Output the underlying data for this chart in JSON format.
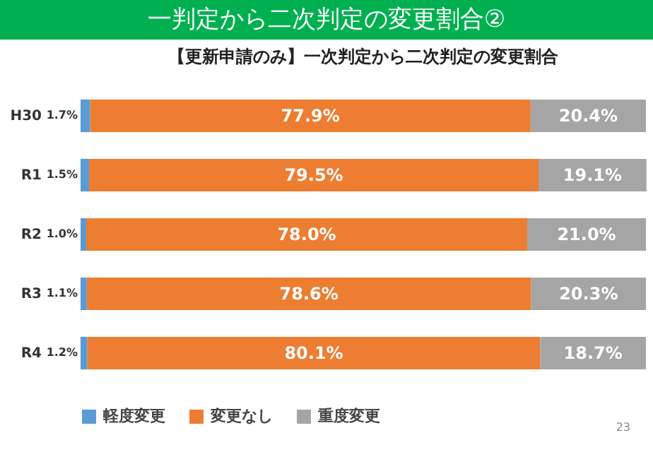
{
  "chart_data": {
    "type": "bar",
    "title": "一判定から二次判定の変更割合②",
    "subtitle": "【更新申請のみ】一次判定から二次判定の変更割合",
    "annotations": [
      "23"
    ],
    "orientation": "horizontal",
    "stacked": true,
    "categories": [
      "H30",
      "R1",
      "R2",
      "R3",
      "R4"
    ],
    "xlim": [
      0,
      100
    ],
    "tick_labels": "y",
    "grid": false,
    "legend": "bottom",
    "series": [
      {
        "name": "軽度変更",
        "color": "#5b9bd5",
        "values": [
          1.7,
          1.5,
          1.0,
          1.1,
          1.2
        ],
        "value_labels": [
          "1.7%",
          "1.5%",
          "1.0%",
          "1.1%",
          "1.2%"
        ]
      },
      {
        "name": "変更なし",
        "color": "#ed7d31",
        "values": [
          77.9,
          79.5,
          78.0,
          78.6,
          80.1
        ],
        "value_labels": [
          "77.9%",
          "79.5%",
          "78.0%",
          "78.6%",
          "80.1%"
        ]
      },
      {
        "name": "重度変更",
        "color": "#a5a5a5",
        "values": [
          20.4,
          19.1,
          21.0,
          20.3,
          18.7
        ],
        "value_labels": [
          "20.4%",
          "19.1%",
          "21.0%",
          "20.3%",
          "18.7%"
        ]
      }
    ]
  }
}
